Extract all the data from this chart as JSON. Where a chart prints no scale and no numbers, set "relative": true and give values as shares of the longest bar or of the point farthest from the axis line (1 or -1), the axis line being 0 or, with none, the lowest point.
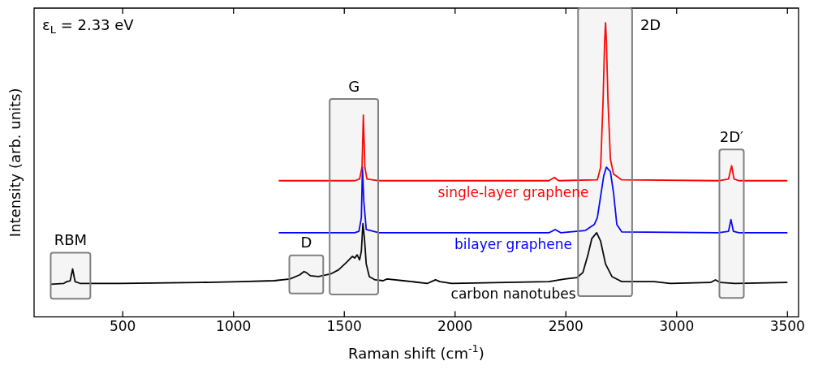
{
  "chart_data": {
    "type": "line",
    "relative": true,
    "xlabel": "Raman shift (cm$^{-1}$)",
    "ylabel": "Intensity (arb. units)",
    "xlim": [
      100,
      3550
    ],
    "xticks": [
      500,
      1000,
      1500,
      2000,
      2500,
      3000,
      3500
    ],
    "grid": false,
    "legend": false,
    "marker": "none",
    "line_style": "solid",
    "annotations": [
      "ε$_{L}$ = 2.33 eV"
    ],
    "bands": [
      {
        "axis": "x",
        "from": 175,
        "to": 354,
        "label": "RBM",
        "color": "#808080"
      },
      {
        "axis": "x",
        "from": 1252,
        "to": 1405,
        "label": "D",
        "color": "#808080"
      },
      {
        "axis": "x",
        "from": 1434,
        "to": 1653,
        "label": "G",
        "color": "#808080"
      },
      {
        "axis": "x",
        "from": 2555,
        "to": 2799,
        "label": "2D",
        "color": "#808080"
      },
      {
        "axis": "x",
        "from": 3193,
        "to": 3303,
        "label": "2D′",
        "color": "#808080"
      }
    ],
    "series": [
      {
        "name": "single-layer graphene",
        "color": "#ff0000",
        "x": [
          1204,
          1547,
          1569,
          1580,
          1586,
          1593,
          1602,
          1657,
          2423,
          2449,
          2467,
          2642,
          2657,
          2668,
          2675,
          2679,
          2683,
          2690,
          2701,
          2715,
          2752,
          3190,
          3234,
          3248,
          3259,
          3281,
          3500
        ],
        "values": [
          0.463,
          0.463,
          0.469,
          0.509,
          0.686,
          0.509,
          0.469,
          0.463,
          0.463,
          0.474,
          0.463,
          0.466,
          0.509,
          0.737,
          0.937,
          1,
          0.937,
          0.737,
          0.537,
          0.486,
          0.466,
          0.463,
          0.469,
          0.514,
          0.469,
          0.463,
          0.463
        ]
      },
      {
        "name": "bilayer graphene",
        "color": "#0000ff",
        "x": [
          1204,
          1547,
          1566,
          1577,
          1582,
          1588,
          1599,
          1657,
          2423,
          2452,
          2478,
          2588,
          2628,
          2642,
          2671,
          2683,
          2701,
          2715,
          2730,
          2752,
          3190,
          3234,
          3245,
          3256,
          3281,
          3500
        ],
        "values": [
          0.286,
          0.286,
          0.291,
          0.337,
          0.509,
          0.394,
          0.297,
          0.286,
          0.286,
          0.297,
          0.286,
          0.294,
          0.314,
          0.337,
          0.48,
          0.509,
          0.494,
          0.423,
          0.314,
          0.289,
          0.286,
          0.291,
          0.331,
          0.291,
          0.286,
          0.286
        ]
      },
      {
        "name": "carbon nanotubes",
        "color": "#000000",
        "x": [
          175,
          234,
          248,
          263,
          274,
          285,
          307,
          489,
          854,
          1037,
          1183,
          1255,
          1299,
          1318,
          1328,
          1347,
          1383,
          1438,
          1474,
          1511,
          1537,
          1547,
          1558,
          1569,
          1577,
          1584,
          1591,
          1599,
          1613,
          1639,
          1675,
          1693,
          1766,
          1876,
          1912,
          1931,
          1985,
          2423,
          2496,
          2551,
          2577,
          2599,
          2617,
          2639,
          2657,
          2679,
          2708,
          2752,
          2898,
          2971,
          3153,
          3175,
          3197,
          3263,
          3500
        ],
        "values": [
          0.111,
          0.114,
          0.12,
          0.123,
          0.163,
          0.12,
          0.114,
          0.114,
          0.117,
          0.12,
          0.123,
          0.129,
          0.143,
          0.154,
          0.151,
          0.14,
          0.137,
          0.146,
          0.16,
          0.186,
          0.206,
          0.2,
          0.211,
          0.194,
          0.223,
          0.317,
          0.266,
          0.18,
          0.137,
          0.126,
          0.123,
          0.129,
          0.123,
          0.114,
          0.126,
          0.12,
          0.114,
          0.12,
          0.129,
          0.134,
          0.151,
          0.209,
          0.266,
          0.286,
          0.257,
          0.18,
          0.137,
          0.12,
          0.12,
          0.114,
          0.117,
          0.126,
          0.117,
          0.114,
          0.117
        ]
      }
    ]
  }
}
